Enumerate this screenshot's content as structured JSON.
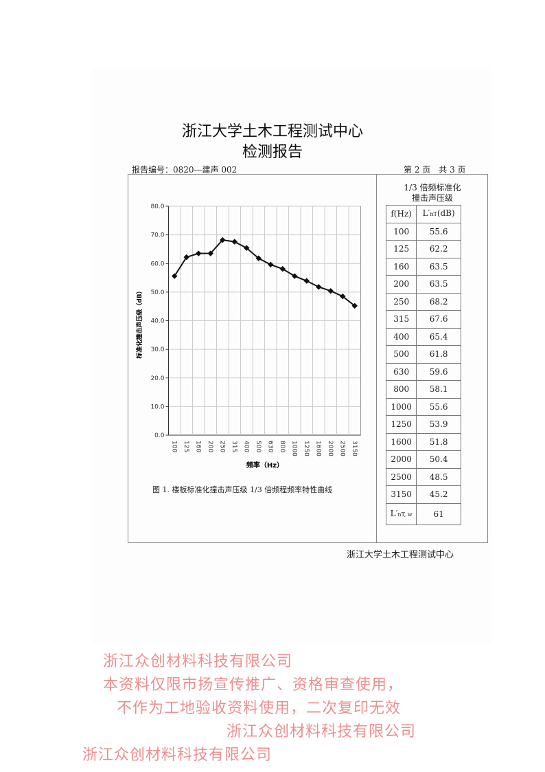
{
  "header": {
    "org": "浙江大学土木工程测试中心",
    "title": "检测报告",
    "report_no": "报告编号：0820—建声 002",
    "page": "第 2 页　共 3 页"
  },
  "table": {
    "title_line1": "1/3 倍频标准化",
    "title_line2": "撞击声压级",
    "col_f": "f(Hz)",
    "col_l": "L′",
    "col_l_sub": "nT",
    "col_l_unit": "(dB)",
    "rows": [
      {
        "f": "100",
        "l": "55.6"
      },
      {
        "f": "125",
        "l": "62.2"
      },
      {
        "f": "160",
        "l": "63.5"
      },
      {
        "f": "200",
        "l": "63.5"
      },
      {
        "f": "250",
        "l": "68.2"
      },
      {
        "f": "315",
        "l": "67.6"
      },
      {
        "f": "400",
        "l": "65.4"
      },
      {
        "f": "500",
        "l": "61.8"
      },
      {
        "f": "630",
        "l": "59.6"
      },
      {
        "f": "800",
        "l": "58.1"
      },
      {
        "f": "1000",
        "l": "55.6"
      },
      {
        "f": "1250",
        "l": "53.9"
      },
      {
        "f": "1600",
        "l": "51.8"
      },
      {
        "f": "2000",
        "l": "50.4"
      },
      {
        "f": "2500",
        "l": "48.5"
      },
      {
        "f": "3150",
        "l": "45.2"
      }
    ],
    "weighted_label": "L′",
    "weighted_sub": "nT, w",
    "weighted_value": "61"
  },
  "chart_data": {
    "type": "line",
    "categories": [
      "100",
      "125",
      "160",
      "200",
      "250",
      "315",
      "400",
      "500",
      "630",
      "800",
      "1000",
      "1250",
      "1600",
      "2000",
      "2500",
      "3150"
    ],
    "values": [
      55.6,
      62.2,
      63.5,
      63.5,
      68.2,
      67.6,
      65.4,
      61.8,
      59.6,
      58.1,
      55.6,
      53.9,
      51.8,
      50.4,
      48.5,
      45.2
    ],
    "ylim": [
      0,
      80
    ],
    "yticks": [
      "0.0",
      "10.0",
      "20.0",
      "30.0",
      "40.0",
      "50.0",
      "60.0",
      "70.0",
      "80.0"
    ],
    "xlabel": "频率（Hz）",
    "ylabel": "标准化撞击声压级（dB）",
    "grid": true,
    "line_color": "#111111"
  },
  "caption": "图 1.  楼板标准化撞击声压级 1/3 倍频程频率特性曲线",
  "footer": "浙江大学土木工程测试中心",
  "watermarks": {
    "company": "浙江众创材料科技有限公司",
    "line1": "本资料仅限市扬宣传推广、资格审查使用，",
    "line2": "不作为工地验收资料使用，二次复印无效",
    "color": "#e14646"
  }
}
